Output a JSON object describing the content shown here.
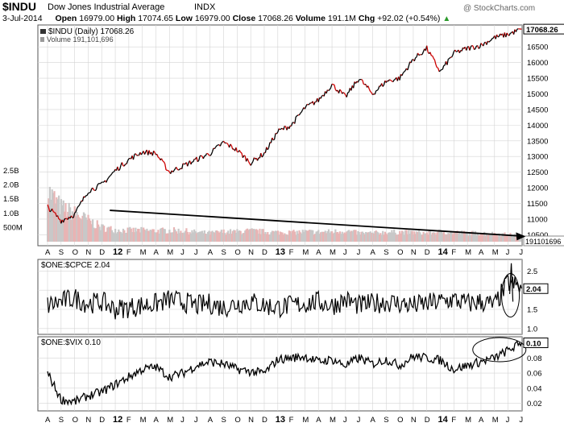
{
  "header": {
    "symbol": "$INDU",
    "name": "Dow Jones Industrial Average",
    "exchange": "INDX",
    "watermark": "@ StockCharts.com",
    "date": "3-Jul-2014",
    "open_label": "Open",
    "open": "16979.00",
    "high_label": "High",
    "high": "17074.65",
    "low_label": "Low",
    "low": "16979.00",
    "close_label": "Close",
    "close": "17068.26",
    "volume_label": "Volume",
    "volume": "191.1M",
    "chg_label": "Chg",
    "chg": "+92.02 (+0.54%)"
  },
  "colors": {
    "up": "#000000",
    "down": "#cc0000",
    "volume": "#c8c8c8",
    "volume_down": "#e8b4b4",
    "grid": "#d4d4d4",
    "frame": "#555555",
    "last_box": "#000000"
  },
  "chart_data": [
    {
      "panel": "price",
      "type": "line",
      "legend": [
        "$INDU (Daily) 17068.26",
        "Volume 191,101,696"
      ],
      "y_ticks": [
        "16500",
        "16000",
        "15500",
        "15000",
        "14500",
        "14000",
        "13500",
        "13000",
        "12500",
        "12000",
        "11500",
        "11000",
        "10500"
      ],
      "ylim": [
        10150,
        17200
      ],
      "last_value_label": "17068.26",
      "x": [
        "2011-08",
        "2011-09",
        "2011-10",
        "2011-11",
        "2011-12",
        "2012-01",
        "2012-02",
        "2012-03",
        "2012-04",
        "2012-05",
        "2012-06",
        "2012-07",
        "2012-08",
        "2012-09",
        "2012-10",
        "2012-11",
        "2012-12",
        "2013-01",
        "2013-02",
        "2013-03",
        "2013-04",
        "2013-05",
        "2013-06",
        "2013-07",
        "2013-08",
        "2013-09",
        "2013-10",
        "2013-11",
        "2013-12",
        "2014-01",
        "2014-02",
        "2014-03",
        "2014-04",
        "2014-05",
        "2014-06",
        "2014-07"
      ],
      "series": [
        {
          "name": "$INDU",
          "values": [
            11400,
            10950,
            11150,
            11900,
            12100,
            12550,
            12900,
            13150,
            13100,
            12500,
            12700,
            12900,
            13100,
            13450,
            13200,
            12800,
            13100,
            13800,
            14000,
            14550,
            14800,
            15300,
            14900,
            15500,
            15000,
            15400,
            15500,
            16100,
            16450,
            15700,
            16300,
            16450,
            16550,
            16800,
            16900,
            17068
          ]
        }
      ],
      "volume": {
        "y_ticks": [
          "2.5B",
          "2.0B",
          "1.5B",
          "1.0B",
          "500M"
        ],
        "ylim": [
          0,
          2.7
        ],
        "last_value_label": "191101696",
        "values_billions": [
          1.8,
          1.2,
          1.0,
          0.75,
          0.5,
          0.42,
          0.4,
          0.4,
          0.38,
          0.4,
          0.38,
          0.33,
          0.3,
          0.35,
          0.35,
          0.38,
          0.35,
          0.33,
          0.32,
          0.35,
          0.34,
          0.35,
          0.38,
          0.3,
          0.3,
          0.33,
          0.34,
          0.32,
          0.3,
          0.35,
          0.33,
          0.3,
          0.3,
          0.28,
          0.25,
          0.2
        ]
      },
      "trendline": {
        "from": [
          "2011-12",
          11280
        ],
        "to": [
          "2014-07",
          10450
        ]
      }
    },
    {
      "panel": "cpce",
      "type": "line",
      "legend": "$ONE:$CPCE 2.04",
      "y_ticks": [
        "2.5",
        "2.0",
        "1.5",
        "1.0"
      ],
      "ylim": [
        0.85,
        2.8
      ],
      "last_value_label": "2.04",
      "x": [
        "2011-08",
        "2011-09",
        "2011-10",
        "2011-11",
        "2011-12",
        "2012-01",
        "2012-02",
        "2012-03",
        "2012-04",
        "2012-05",
        "2012-06",
        "2012-07",
        "2012-08",
        "2012-09",
        "2012-10",
        "2012-11",
        "2012-12",
        "2013-01",
        "2013-02",
        "2013-03",
        "2013-04",
        "2013-05",
        "2013-06",
        "2013-07",
        "2013-08",
        "2013-09",
        "2013-10",
        "2013-11",
        "2013-12",
        "2014-01",
        "2014-02",
        "2014-03",
        "2014-04",
        "2014-05",
        "2014-06",
        "2014-07"
      ],
      "series": [
        {
          "name": "$ONE:$CPCE",
          "values": [
            1.6,
            1.7,
            1.8,
            1.65,
            1.7,
            1.5,
            1.55,
            1.6,
            1.65,
            1.75,
            1.7,
            1.6,
            1.65,
            1.55,
            1.65,
            1.7,
            1.6,
            1.55,
            1.6,
            1.65,
            1.7,
            1.6,
            1.75,
            1.6,
            1.65,
            1.7,
            1.65,
            1.6,
            1.65,
            1.7,
            1.75,
            1.65,
            1.7,
            1.6,
            2.2,
            2.04
          ]
        }
      ]
    },
    {
      "panel": "vix",
      "type": "line",
      "legend": "$ONE:$VIX 0.10",
      "y_ticks": [
        "0.08",
        "0.06",
        "0.04",
        "0.02"
      ],
      "ylim": [
        0.01,
        0.108
      ],
      "last_value_label": "0.10",
      "x": [
        "2011-08",
        "2011-09",
        "2011-10",
        "2011-11",
        "2011-12",
        "2012-01",
        "2012-02",
        "2012-03",
        "2012-04",
        "2012-05",
        "2012-06",
        "2012-07",
        "2012-08",
        "2012-09",
        "2012-10",
        "2012-11",
        "2012-12",
        "2013-01",
        "2013-02",
        "2013-03",
        "2013-04",
        "2013-05",
        "2013-06",
        "2013-07",
        "2013-08",
        "2013-09",
        "2013-10",
        "2013-11",
        "2013-12",
        "2014-01",
        "2014-02",
        "2014-03",
        "2014-04",
        "2014-05",
        "2014-06",
        "2014-07"
      ],
      "series": [
        {
          "name": "$ONE:$VIX",
          "values": [
            0.06,
            0.025,
            0.022,
            0.03,
            0.035,
            0.045,
            0.055,
            0.065,
            0.068,
            0.055,
            0.06,
            0.07,
            0.075,
            0.072,
            0.065,
            0.062,
            0.06,
            0.078,
            0.08,
            0.082,
            0.075,
            0.078,
            0.07,
            0.08,
            0.072,
            0.078,
            0.07,
            0.082,
            0.08,
            0.077,
            0.065,
            0.07,
            0.075,
            0.08,
            0.09,
            0.1
          ]
        }
      ]
    }
  ],
  "x_axis": {
    "labels": [
      "A",
      "S",
      "O",
      "N",
      "D",
      "12",
      "F",
      "M",
      "A",
      "M",
      "J",
      "J",
      "A",
      "S",
      "O",
      "N",
      "D",
      "13",
      "F",
      "M",
      "A",
      "M",
      "J",
      "J",
      "A",
      "S",
      "O",
      "N",
      "D",
      "14",
      "F",
      "M",
      "A",
      "M",
      "J",
      "J"
    ],
    "bold_labels": [
      "12",
      "13",
      "14"
    ]
  }
}
